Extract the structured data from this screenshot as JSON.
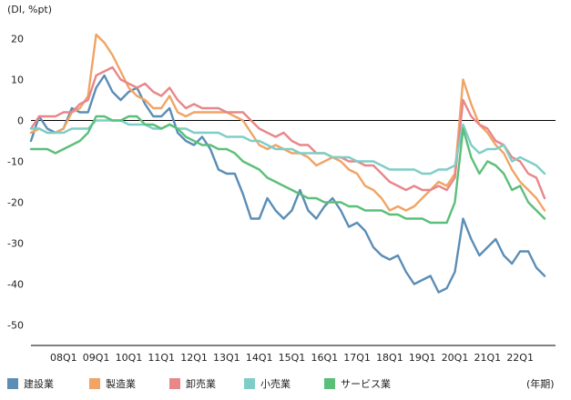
{
  "chart_data": {
    "type": "line",
    "ylabel": "(DI, %pt)",
    "xlabel": "(年期)",
    "ylim": [
      -55,
      25
    ],
    "yticks": [
      20,
      10,
      0,
      -10,
      -20,
      -30,
      -40,
      -50
    ],
    "start_period": "2007Q1",
    "period_count": 64,
    "x_tick_labels": [
      {
        "label": "08Q1",
        "index": 4
      },
      {
        "label": "09Q1",
        "index": 8
      },
      {
        "label": "10Q1",
        "index": 12
      },
      {
        "label": "11Q1",
        "index": 16
      },
      {
        "label": "12Q1",
        "index": 20
      },
      {
        "label": "13Q1",
        "index": 24
      },
      {
        "label": "14Q1",
        "index": 28
      },
      {
        "label": "15Q1",
        "index": 32
      },
      {
        "label": "16Q1",
        "index": 36
      },
      {
        "label": "17Q1",
        "index": 40
      },
      {
        "label": "18Q1",
        "index": 44
      },
      {
        "label": "19Q1",
        "index": 48
      },
      {
        "label": "20Q1",
        "index": 52
      },
      {
        "label": "21Q1",
        "index": 56
      },
      {
        "label": "22Q1",
        "index": 60
      }
    ],
    "series": [
      {
        "name": "建設業",
        "color": "#5b8db5",
        "values": [
          -5,
          1,
          -2,
          -3,
          -2,
          3,
          2,
          2,
          8,
          11,
          7,
          5,
          7,
          8,
          4,
          1,
          1,
          3,
          -3,
          -5,
          -6,
          -4,
          -7,
          -12,
          -13,
          -13,
          -18,
          -24,
          -24,
          -19,
          -22,
          -24,
          -22,
          -17,
          -22,
          -24,
          -21,
          -19,
          -22,
          -26,
          -25,
          -27,
          -31,
          -33,
          -34,
          -33,
          -37,
          -40,
          -39,
          -38,
          -42,
          -41,
          -37,
          -24,
          -29,
          -33,
          -31,
          -29,
          -33,
          -35,
          -32,
          -32,
          -36,
          -38
        ]
      },
      {
        "name": "製造業",
        "color": "#f0a465",
        "values": [
          -3,
          -2,
          -3,
          -3,
          -2,
          2,
          3,
          6,
          21,
          19,
          16,
          12,
          8,
          6,
          5,
          3,
          3,
          6,
          2,
          1,
          2,
          2,
          2,
          2,
          2,
          1,
          0,
          -3,
          -6,
          -7,
          -6,
          -7,
          -8,
          -8,
          -9,
          -11,
          -10,
          -9,
          -10,
          -12,
          -13,
          -16,
          -17,
          -19,
          -22,
          -21,
          -22,
          -21,
          -19,
          -17,
          -15,
          -16,
          -13,
          10,
          4,
          -1,
          -3,
          -6,
          -8,
          -12,
          -15,
          -17,
          -19,
          -22
        ]
      },
      {
        "name": "卸売業",
        "color": "#e8878a",
        "values": [
          -2,
          1,
          1,
          1,
          2,
          2,
          4,
          5,
          11,
          12,
          13,
          10,
          9,
          8,
          9,
          7,
          6,
          8,
          5,
          3,
          4,
          3,
          3,
          3,
          2,
          2,
          2,
          0,
          -2,
          -3,
          -4,
          -3,
          -5,
          -6,
          -6,
          -8,
          -8,
          -9,
          -9,
          -10,
          -10,
          -11,
          -11,
          -13,
          -15,
          -16,
          -17,
          -16,
          -17,
          -17,
          -16,
          -17,
          -14,
          5,
          1,
          -1,
          -2,
          -5,
          -6,
          -9,
          -10,
          -13,
          -14,
          -19
        ]
      },
      {
        "name": "小売業",
        "color": "#7ecec7",
        "values": [
          -2,
          -2,
          -3,
          -3,
          -3,
          -2,
          -2,
          -2,
          0,
          0,
          0,
          0,
          -1,
          -1,
          -1,
          -2,
          -2,
          -1,
          -2,
          -2,
          -3,
          -3,
          -3,
          -3,
          -4,
          -4,
          -4,
          -5,
          -5,
          -6,
          -7,
          -7,
          -7,
          -8,
          -8,
          -8,
          -8,
          -9,
          -9,
          -9,
          -10,
          -10,
          -10,
          -11,
          -12,
          -12,
          -12,
          -12,
          -13,
          -13,
          -12,
          -12,
          -11,
          -1,
          -6,
          -8,
          -7,
          -7,
          -6,
          -10,
          -9,
          -10,
          -11,
          -13
        ]
      },
      {
        "name": "サービス業",
        "color": "#5bbf7a",
        "values": [
          -7,
          -7,
          -7,
          -8,
          -7,
          -6,
          -5,
          -3,
          1,
          1,
          0,
          0,
          1,
          1,
          -1,
          -1,
          -2,
          -1,
          -2,
          -4,
          -5,
          -6,
          -6,
          -7,
          -7,
          -8,
          -10,
          -11,
          -12,
          -14,
          -15,
          -16,
          -17,
          -18,
          -19,
          -19,
          -20,
          -20,
          -20,
          -21,
          -21,
          -22,
          -22,
          -22,
          -23,
          -23,
          -24,
          -24,
          -24,
          -25,
          -25,
          -25,
          -20,
          -2,
          -9,
          -13,
          -10,
          -11,
          -13,
          -17,
          -16,
          -20,
          -22,
          -24
        ]
      }
    ]
  }
}
